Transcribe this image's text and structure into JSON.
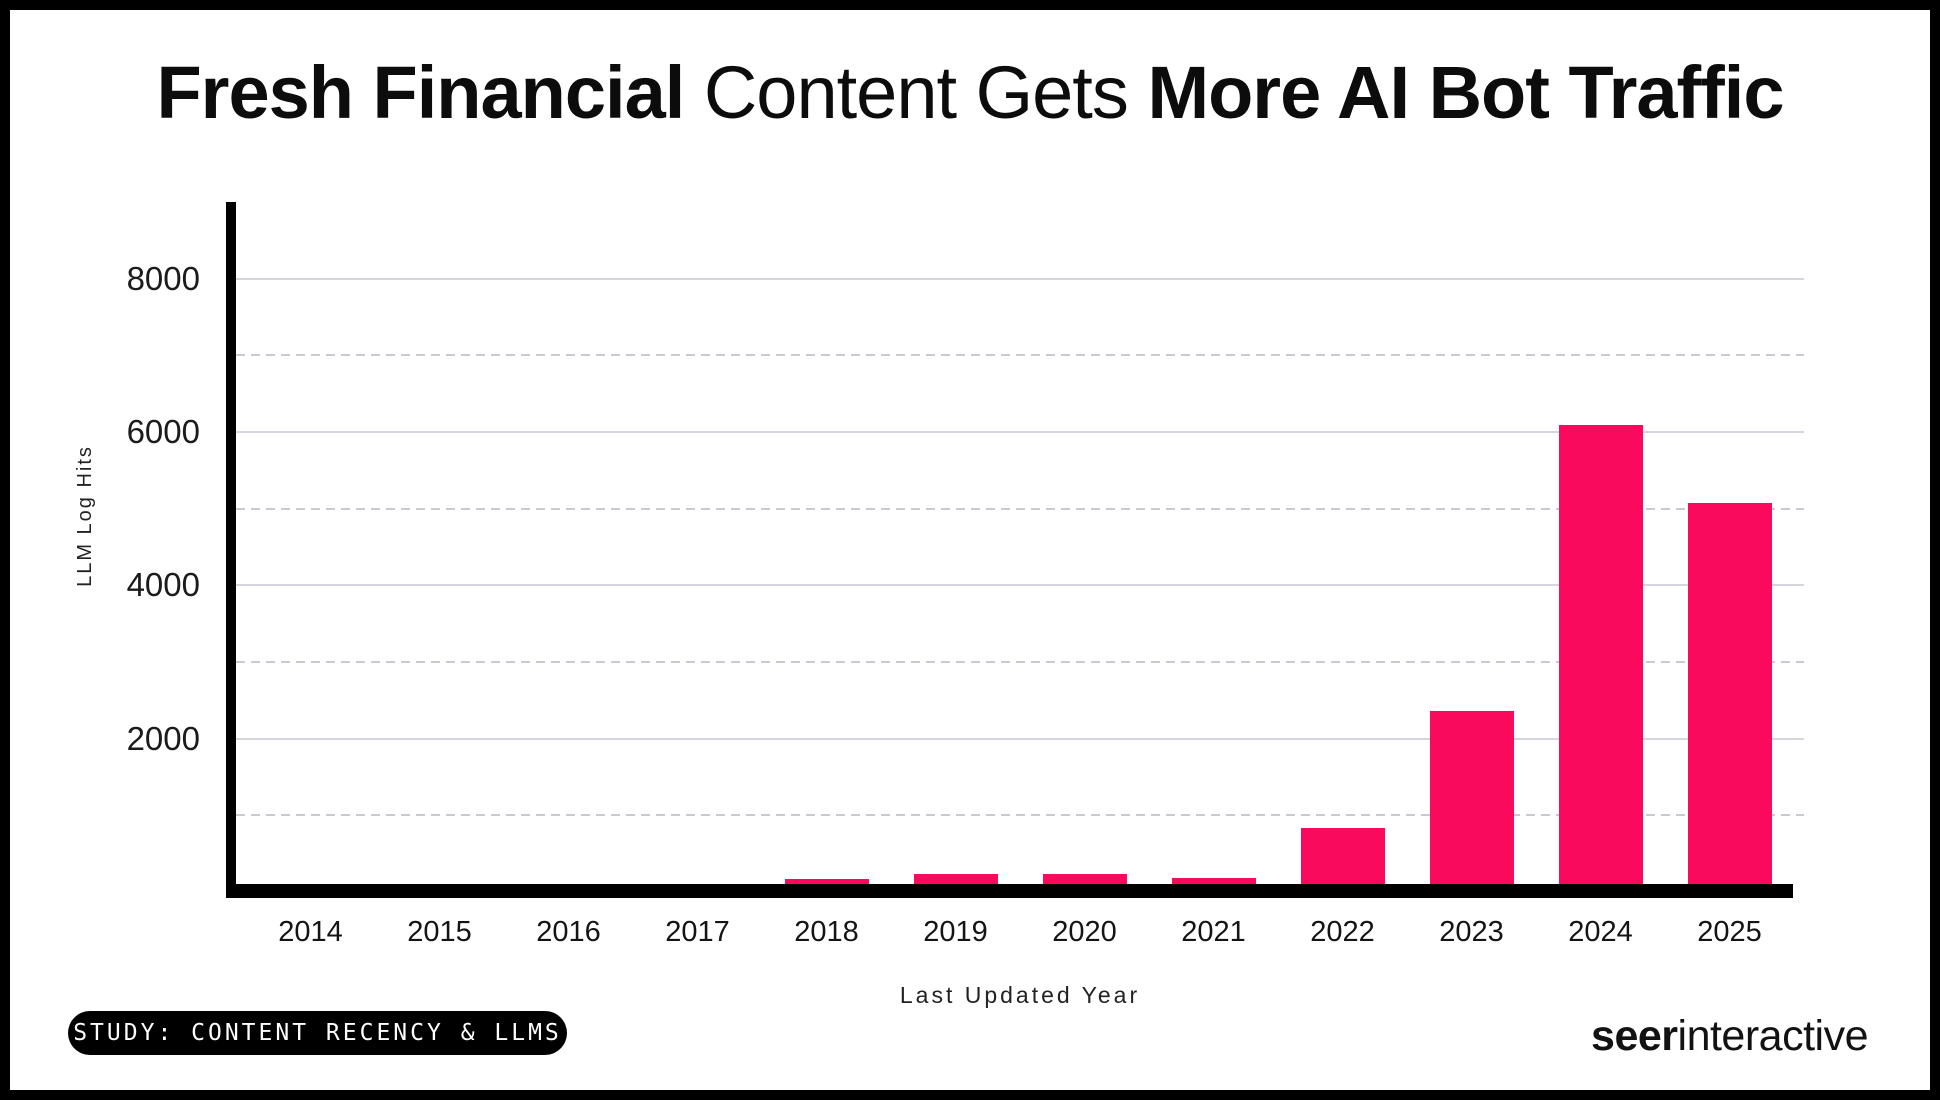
{
  "header": {
    "title_bold_1": "Fresh Financial",
    "title_regular": " Content Gets ",
    "title_bold_2": "More AI Bot Traffic"
  },
  "footer": {
    "study_badge": "STUDY: CONTENT RECENCY & LLMS",
    "logo_bold": "seer",
    "logo_regular": "interactive"
  },
  "colors": {
    "bar_pink": "#FA0A5C",
    "axis_black": "#000000",
    "gridline_solid": "#d5d5df",
    "gridline_dashed": "#c9c9d4",
    "background": "#ffffff"
  },
  "chart_data": {
    "type": "bar",
    "title": "Fresh Financial Content Gets More AI Bot Traffic",
    "categories": [
      "2014",
      "2015",
      "2016",
      "2017",
      "2018",
      "2019",
      "2020",
      "2021",
      "2022",
      "2023",
      "2024",
      "2025"
    ],
    "values": [
      0,
      0,
      0,
      0,
      170,
      240,
      230,
      185,
      835,
      2365,
      6085,
      5070
    ],
    "xlabel": "Last Updated Year",
    "ylabel": "LLM Log Hits",
    "ylim": [
      0,
      9000
    ],
    "yticks_solid": [
      2000,
      4000,
      6000,
      8000
    ],
    "yticks_dashed": [
      1000,
      3000,
      5000,
      7000
    ],
    "grid": true,
    "legend": false,
    "bar_color": "#FA0A5C"
  }
}
